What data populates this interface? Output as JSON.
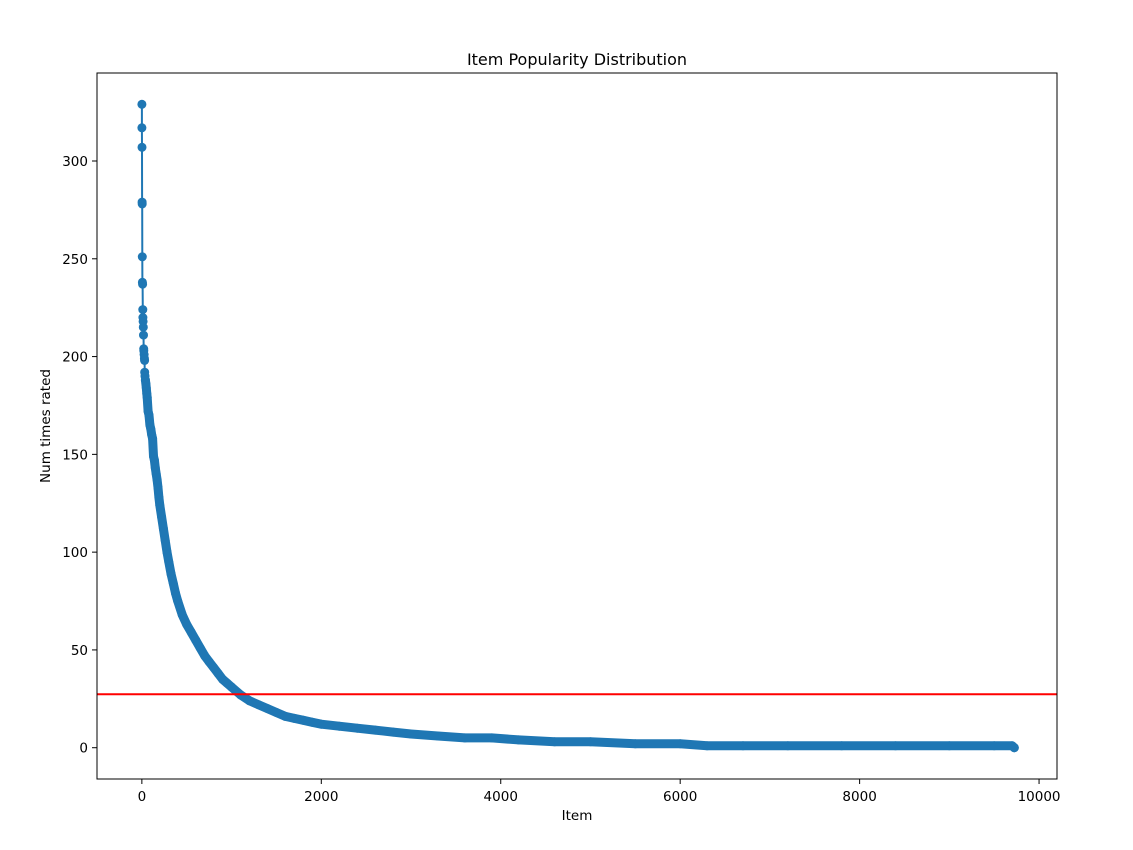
{
  "chart_data": {
    "type": "line",
    "title": "Item Popularity Distribution",
    "xlabel": "Item",
    "ylabel": "Num times rated",
    "xlim": [
      -500,
      10200
    ],
    "ylim": [
      -16,
      345
    ],
    "xticks": [
      0,
      2000,
      4000,
      6000,
      8000,
      10000
    ],
    "yticks": [
      0,
      50,
      100,
      150,
      200,
      250,
      300
    ],
    "xtick_labels": [
      "0",
      "2000",
      "4000",
      "6000",
      "8000",
      "10000"
    ],
    "ytick_labels": [
      "0",
      "50",
      "100",
      "150",
      "200",
      "250",
      "300"
    ],
    "grid": false,
    "series": [
      {
        "color": "#1f77b4",
        "marker": "circle",
        "x": [
          0,
          1,
          2,
          3,
          4,
          5,
          6,
          8,
          10,
          12,
          14,
          16,
          18,
          20,
          22,
          25,
          28,
          30,
          32,
          35,
          40,
          45,
          50,
          55,
          60,
          70,
          80,
          90,
          100,
          110,
          120,
          130,
          140,
          150,
          160,
          170,
          180,
          190,
          200,
          220,
          240,
          260,
          280,
          300,
          325,
          350,
          375,
          400,
          450,
          500,
          550,
          600,
          650,
          700,
          750,
          800,
          850,
          900,
          950,
          1000,
          1100,
          1200,
          1300,
          1400,
          1500,
          1600,
          1700,
          1800,
          1900,
          2000,
          2200,
          2400,
          2600,
          2800,
          3000,
          3300,
          3600,
          3900,
          4200,
          4600,
          5000,
          5500,
          6000,
          6300,
          6700,
          7200,
          7800,
          8400,
          9000,
          9500,
          9700,
          9724
        ],
        "y": [
          329,
          317,
          307,
          279,
          278,
          251,
          238,
          237,
          224,
          220,
          218,
          215,
          211,
          204,
          203,
          201,
          199,
          198,
          192,
          190,
          188,
          186,
          184,
          181,
          179,
          172,
          170,
          165,
          163,
          160,
          158,
          149,
          147,
          143,
          140,
          137,
          133,
          128,
          124,
          118,
          112,
          106,
          100,
          95,
          89,
          84,
          79,
          75,
          68,
          63,
          59,
          55,
          51,
          47,
          44,
          41,
          38,
          35,
          33,
          31,
          27,
          24,
          22,
          20,
          18,
          16,
          15,
          14,
          13,
          12,
          11,
          10,
          9,
          8,
          7,
          6,
          5,
          5,
          4,
          3,
          3,
          2,
          2,
          1,
          1,
          1,
          1,
          1,
          1,
          1,
          1,
          0
        ]
      }
    ],
    "hlines": [
      {
        "y": 27.3,
        "color": "#ff0000"
      }
    ]
  }
}
